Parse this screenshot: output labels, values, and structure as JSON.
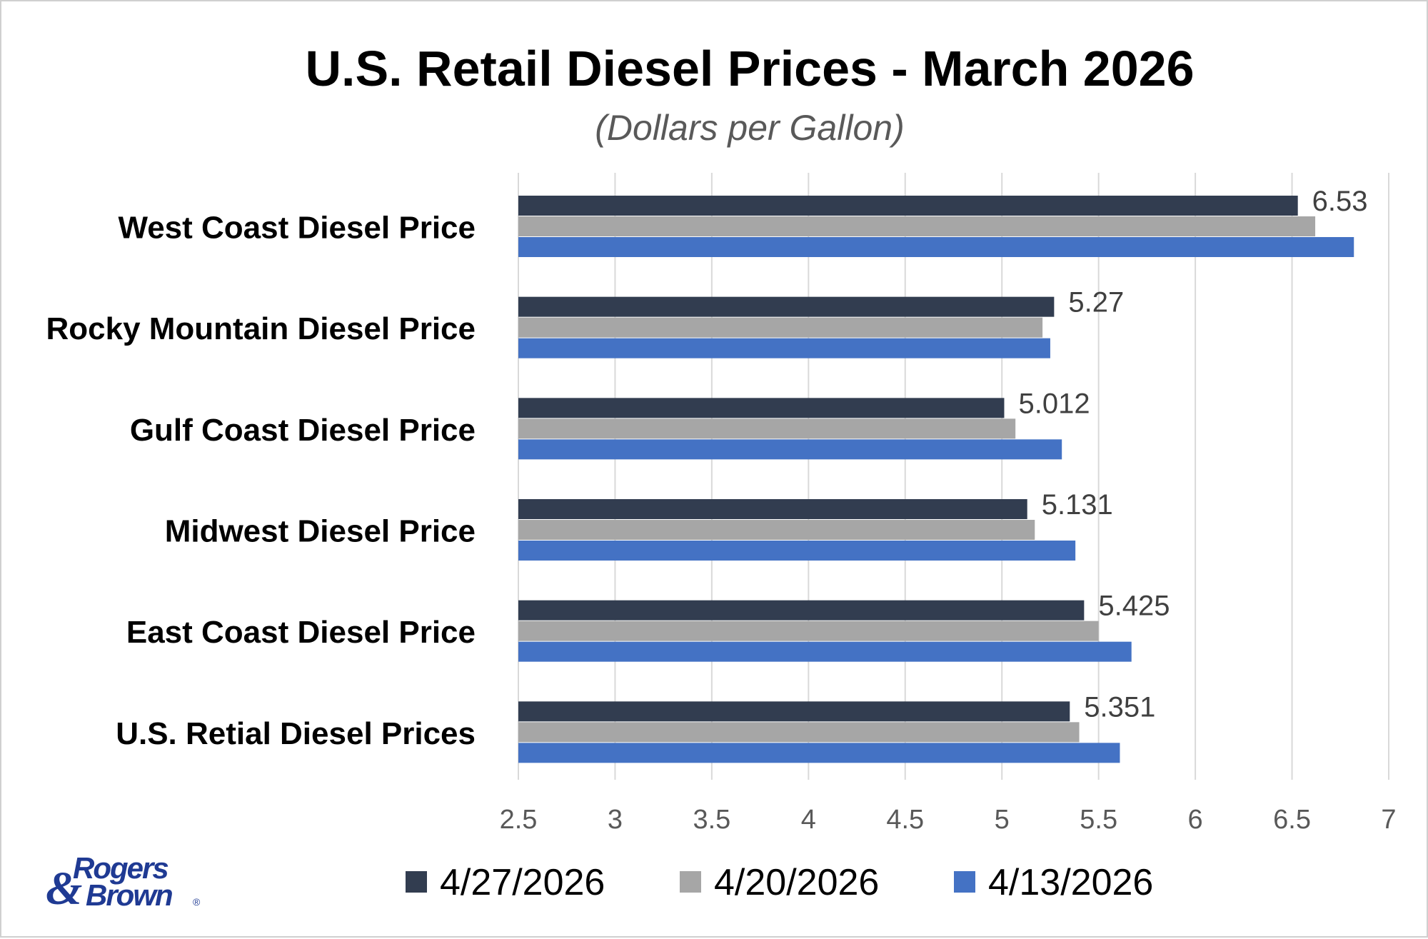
{
  "chart_data": {
    "type": "bar",
    "orientation": "horizontal",
    "title": "U.S. Retail Diesel Prices - March 2026",
    "subtitle": "(Dollars per Gallon)",
    "categories": [
      "West Coast Diesel Price",
      "Rocky Mountain Diesel Price",
      "Gulf Coast Diesel Price",
      "Midwest Diesel Price",
      "East Coast Diesel Price",
      "U.S. Retial Diesel Prices"
    ],
    "series": [
      {
        "name": "4/27/2026",
        "color": "#323d50",
        "values": [
          6.53,
          5.27,
          5.012,
          5.131,
          5.425,
          5.351
        ]
      },
      {
        "name": "4/20/2026",
        "color": "#a6a6a6",
        "values": [
          6.62,
          5.21,
          5.07,
          5.17,
          5.5,
          5.4
        ]
      },
      {
        "name": "4/13/2026",
        "color": "#4472c4",
        "values": [
          6.82,
          5.25,
          5.31,
          5.38,
          5.67,
          5.61
        ]
      }
    ],
    "data_labels": [
      "6.53",
      "5.27",
      "5.012",
      "5.131",
      "5.425",
      "5.351"
    ],
    "xlim": [
      2.5,
      7
    ],
    "xticks": [
      "2.5",
      "3",
      "3.5",
      "4",
      "4.5",
      "5",
      "5.5",
      "6",
      "6.5",
      "7"
    ],
    "grid": true,
    "legend_position": "bottom"
  },
  "logo": {
    "line1": "Rogers",
    "line2": "Brown"
  }
}
